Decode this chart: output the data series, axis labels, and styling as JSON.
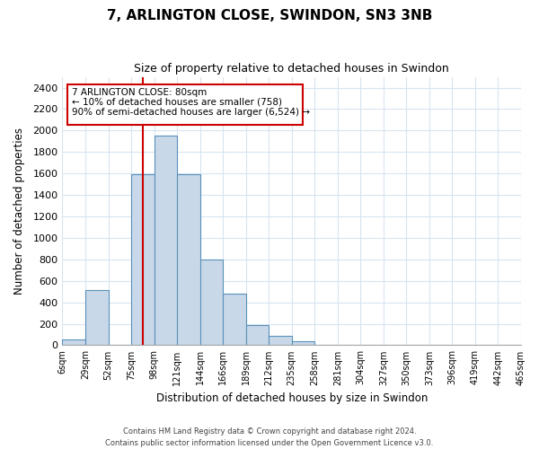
{
  "title": "7, ARLINGTON CLOSE, SWINDON, SN3 3NB",
  "subtitle": "Size of property relative to detached houses in Swindon",
  "xlabel": "Distribution of detached houses by size in Swindon",
  "ylabel": "Number of detached properties",
  "bar_color": "#c8d8e8",
  "bar_edge_color": "#5a90bb",
  "bin_labels": [
    "6sqm",
    "29sqm",
    "52sqm",
    "75sqm",
    "98sqm",
    "121sqm",
    "144sqm",
    "166sqm",
    "189sqm",
    "212sqm",
    "235sqm",
    "258sqm",
    "281sqm",
    "304sqm",
    "327sqm",
    "350sqm",
    "373sqm",
    "396sqm",
    "419sqm",
    "442sqm",
    "465sqm"
  ],
  "bar_heights": [
    55,
    510,
    0,
    1590,
    1950,
    1590,
    800,
    480,
    190,
    90,
    35,
    0,
    0,
    0,
    0,
    0,
    0,
    0,
    0,
    0
  ],
  "ylim": [
    0,
    2500
  ],
  "yticks": [
    0,
    200,
    400,
    600,
    800,
    1000,
    1200,
    1400,
    1600,
    1800,
    2000,
    2200,
    2400
  ],
  "vline_color": "#cc0000",
  "annotation_text_line1": "7 ARLINGTON CLOSE: 80sqm",
  "annotation_text_line2": "← 10% of detached houses are smaller (758)",
  "annotation_text_line3": "90% of semi-detached houses are larger (6,524) →",
  "footer_line1": "Contains HM Land Registry data © Crown copyright and database right 2024.",
  "footer_line2": "Contains public sector information licensed under the Open Government Licence v3.0.",
  "background_color": "#ffffff",
  "grid_color": "#d8e4f0"
}
